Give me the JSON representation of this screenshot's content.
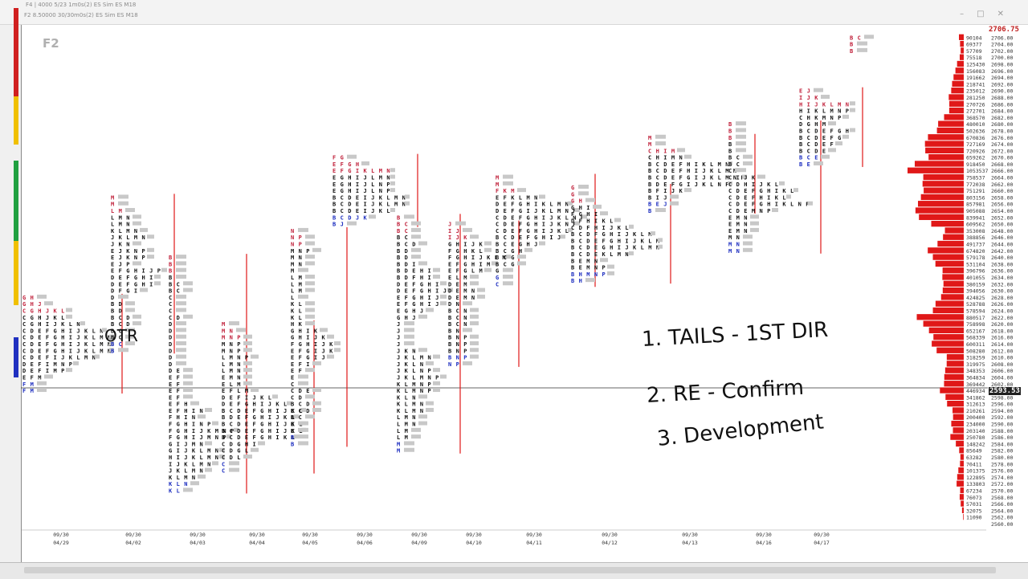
{
  "window": {
    "title_back": "F4 | 4000 5/23 1m0s(2) ES Sim ES M18",
    "title_front": "F2 8.50000 30/30m0s(2) ES Sim ES M18",
    "pane_label": "F2"
  },
  "price_boxes": {
    "high": "2706.75",
    "current": "2593.53"
  },
  "annotations": {
    "line1": "1. TAILS  -  1ST DIR",
    "line2": "2. RE  -  Confirm",
    "line3": "3. Development",
    "otr": "OTR"
  },
  "colors": {
    "red": "#c0203a",
    "black": "#111111",
    "blue": "#1a2bbf",
    "green": "#22aa55",
    "gray": "#c8c8c8",
    "redbar": "#e01818"
  },
  "chart_data": {
    "type": "market_profile",
    "price_axis": {
      "ylim": [
        2560,
        2708
      ],
      "tick_step": 2,
      "ticks": [
        2706,
        2704,
        2702,
        2700,
        2698,
        2696,
        2694,
        2692,
        2690,
        2688,
        2686,
        2684,
        2682,
        2680,
        2678,
        2676,
        2674,
        2672,
        2670,
        2668,
        2666,
        2664,
        2662,
        2660,
        2658,
        2656,
        2654,
        2652,
        2650,
        2648,
        2646,
        2644,
        2642,
        2640,
        2638,
        2636,
        2634,
        2632,
        2630,
        2628,
        2626,
        2624,
        2622,
        2620,
        2618,
        2616,
        2614,
        2612,
        2610,
        2608,
        2606,
        2604,
        2602,
        2600,
        2598,
        2596,
        2594,
        2592,
        2590,
        2588,
        2586,
        2584,
        2582,
        2580,
        2578,
        2576,
        2574,
        2572,
        2570,
        2568,
        2566,
        2564,
        2562,
        2560
      ],
      "volumes": [
        "90104",
        "69377",
        "57709",
        "75518",
        "125430",
        "156083",
        "191662",
        "218741",
        "235012",
        "281250",
        "270726",
        "272701",
        "368570",
        "480010",
        "502636",
        "670836",
        "727169",
        "720926",
        "659262",
        "918450",
        "1053537",
        "758537",
        "772038",
        "751291",
        "803156",
        "857981",
        "905088",
        "839941",
        "609562",
        "353008",
        "388856",
        "491737",
        "674820",
        "579178",
        "531104",
        "396796",
        "401055",
        "380159",
        "394056",
        "424825",
        "528788",
        "578594",
        "880517",
        "758998",
        "652167",
        "568339",
        "600311",
        "508280",
        "318259",
        "319975",
        "348353",
        "364834",
        "369442",
        "446934",
        "341862",
        "312613",
        "210261",
        "200400",
        "234000",
        "203140",
        "250780",
        "148242",
        "85649",
        "63282",
        "70411",
        "101375",
        "122895",
        "133803",
        "67234",
        "76073",
        "57031",
        "32075",
        "11090"
      ]
    },
    "sessions": [
      {
        "date": "04/29",
        "time": "09/30",
        "top": 2628,
        "tpo": [
          "GH",
          "GHJ",
          "CGHJKL",
          "CGHJKL",
          "CGHIJKLN",
          "CDEFGHIJKLN",
          "CDEFGHIJKLMN",
          "CDEFGHIJKLMN",
          "CDEFGHIJKLMN",
          "CDEFIJKLMN",
          "DEFIMNP",
          "DEFIMP",
          "EFM",
          "FM",
          "FM"
        ]
      },
      {
        "date": "04/02",
        "time": "09/30",
        "top": 2658,
        "tpo": [
          "M",
          "M",
          "LM",
          "LMN",
          "LMN",
          "KLMN",
          "JKLMN",
          "JKN",
          "EJKNP",
          "EJKNP",
          "EJP",
          "EFGHIJP",
          "DEFGHI",
          "DEFGHI",
          "DFGI",
          "D",
          "BD",
          "BD",
          "BCD",
          "BCD",
          "BC",
          "BC",
          "BC",
          "B"
        ]
      },
      {
        "date": "04/03",
        "time": "09/30",
        "top": 2640,
        "tpo": [
          "B",
          "B",
          "B",
          "B",
          "BC",
          "BC",
          "C",
          "C",
          "C",
          "CD",
          "D",
          "D",
          "D",
          "D",
          "D",
          "D",
          "D",
          "DE",
          "EF",
          "EF",
          "EF",
          "EF",
          "EFH",
          "EFHIN",
          "FHIN",
          "FGHINP",
          "FGHIJKMNP",
          "FGHIJMNP",
          "GIJMN",
          "GIJKLMN",
          "HIJKLMN",
          "IJKLMN",
          "JKLMN",
          "KLMN",
          "KLN",
          "KL"
        ]
      },
      {
        "date": "04/04",
        "time": "09/30",
        "top": 2620,
        "tpo": [
          "M",
          "MN",
          "MNP",
          "MNP",
          "MNP",
          "LMNP",
          "LMN",
          "LMN",
          "EMN",
          "ELM",
          "EFLM",
          "DEFIJKL",
          "DEFGHIJKL",
          "BCDEFGHIJKL",
          "BDEFGHIJKL",
          "BCDEFGHIJKL",
          "BCDEFGHIJKL",
          "BCDEFGHIKL",
          "CDGHI",
          "CDGL",
          "CDL",
          "C",
          "C"
        ]
      },
      {
        "date": "04/05",
        "time": "09/30",
        "top": 2648,
        "tpo": [
          "N",
          "NP",
          "NP",
          "MNP",
          "MN",
          "MN",
          "M",
          "LM",
          "LM",
          "LM",
          "L",
          "KL",
          "KL",
          "KL",
          "HK",
          "GHIK",
          "GHIJK",
          "FGHIJK",
          "EFGIJK",
          "EFGIJ",
          "EFI",
          "EF",
          "E",
          "C",
          "CDE",
          "CD",
          "BCD",
          "BCD",
          "BC",
          "B",
          "B",
          "B",
          "B"
        ]
      },
      {
        "date": "04/06",
        "time": "09/30",
        "top": 2670,
        "tpo": [
          "FG",
          "EFGH",
          "EFGIKLMN",
          "EGHIJLMN",
          "EGHIJLNP",
          "EGHIJLNP",
          "BCDEIJKLMN",
          "BCDEIJKLMN",
          "BCDEIJKL",
          "BCDJK",
          "BJ"
        ]
      },
      {
        "date": "04/09",
        "time": "09/30",
        "top": 2652,
        "tpo": [
          "B",
          "BC",
          "BC",
          "BC",
          "BCD",
          "BD",
          "BD",
          "BDI",
          "BDEHI",
          "BDFHI",
          "DEFGHI",
          "DEFGHIJ",
          "EFGHIJ",
          "EFGHIJ",
          "EGHJ",
          "GHJ",
          "J",
          "J",
          "J",
          "J",
          "JKN",
          "JKLMN",
          "JKLN",
          "JKLNP",
          "JKLMNP",
          "KLMNP",
          "KLMNP",
          "KLN",
          "KLMN",
          "KLMN",
          "LMN",
          "LMN",
          "LM",
          "LM",
          "M",
          "M"
        ]
      },
      {
        "date": "04/10",
        "time": "09/30",
        "top": 2650,
        "tpo": [
          "J",
          "IJ",
          "IJK",
          "GHIJK",
          "FGHKL",
          "FGHIJKLM",
          "EFGHIM",
          "EFGLM",
          "ELM",
          "DEM",
          "DEMN",
          "DEMN",
          "DN",
          "BCN",
          "BCN",
          "BCN",
          "BN",
          "BNP",
          "BNP",
          "BNP",
          "BNP",
          "NP"
        ]
      },
      {
        "date": "04/11",
        "time": "09/30",
        "top": 2664,
        "tpo": [
          "M",
          "M",
          "FKM",
          "EFKLMN",
          "DEFGHIKLMN",
          "DEFGIJKLMNP",
          "CDEFGHIJKLNP",
          "CDEFGHIJKNP",
          "CDEFGHIJKL",
          "BCDEFGHIJ",
          "BCEGHJ",
          "BCGH",
          "BCG",
          "BCG",
          "G",
          "G",
          "C"
        ]
      },
      {
        "date": "04/12",
        "time": "09/30",
        "top": 2661,
        "tpo": [
          "G",
          "G",
          "GH",
          "GHI",
          "FGHI",
          "DFHIKL",
          "CDFHIJKL",
          "BCDFGHIJKLM",
          "BCDEFGHIJKLM",
          "BCDEGHIJKLMN",
          "BCDEKLMN",
          "BEMN",
          "BEMNP",
          "BHMNP",
          "BH"
        ]
      },
      {
        "date": "04/13",
        "time": "09/30",
        "top": 2676,
        "tpo": [
          "M",
          "M",
          "CHIM",
          "CHIMN",
          "BCDEFHIKLMN",
          "BCDEFHIJKLMN",
          "BCDEFGIJKLMNP",
          "BDEFGIJKLNP",
          "BFIJK",
          "BIJ",
          "BEJ",
          "B"
        ]
      },
      {
        "date": "04/16",
        "time": "09/30",
        "top": 2680,
        "tpo": [
          "B",
          "B",
          "B",
          "B",
          "B",
          "BC",
          "BC",
          "C",
          "CIJK",
          "CDHIJKL",
          "CDEFGHIKL",
          "CDEFHIKL",
          "CDEFGHIKLNP",
          "CDEMNP",
          "EMN",
          "EMN",
          "EMN",
          "MN",
          "MN",
          "MN"
        ]
      },
      {
        "date": "04/17",
        "time": "09/30",
        "top": 2690,
        "tpo": [
          "EJ",
          "IJK",
          "HIJKLMN",
          "HIKLMNP",
          "CHKMNP",
          "DGHM",
          "BCDEFGH",
          "BCDEFG",
          "BCDEF",
          "BCDE",
          "BCE",
          "BE"
        ]
      },
      {
        "date": "",
        "time": "",
        "top": 2706,
        "tpo": [
          "BC",
          "B",
          "B"
        ]
      }
    ]
  }
}
